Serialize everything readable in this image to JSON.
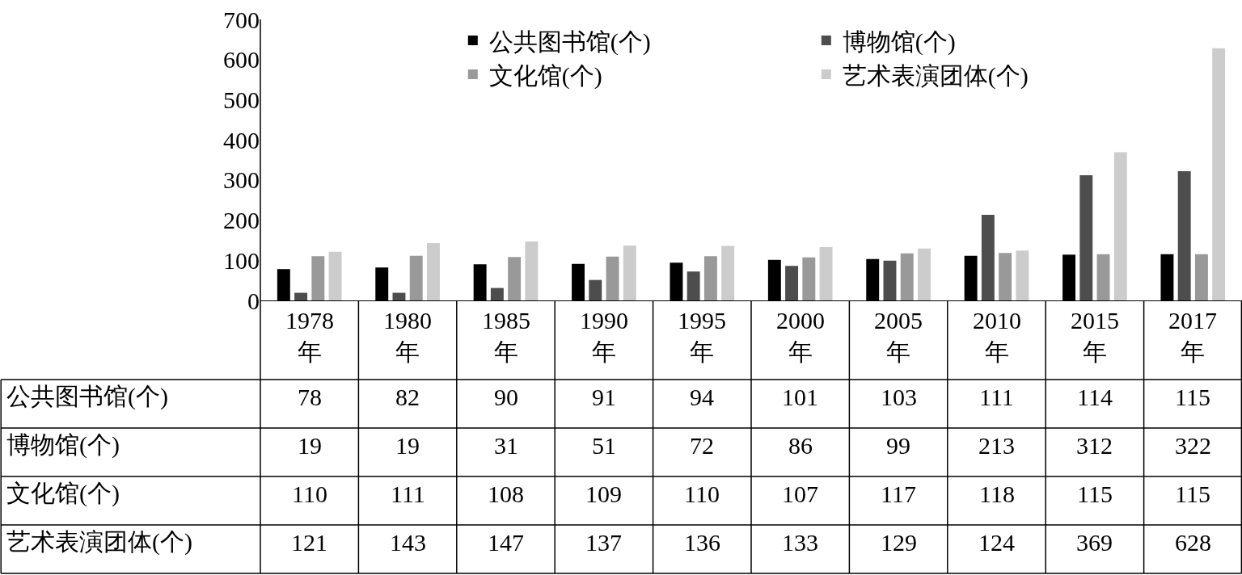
{
  "chart_data": {
    "type": "bar",
    "categories": [
      "1978年",
      "1980年",
      "1985年",
      "1990年",
      "1995年",
      "2000年",
      "2005年",
      "2010年",
      "2015年",
      "2017年"
    ],
    "series": [
      {
        "name": "公共图书馆(个)",
        "color": "#000000",
        "values": [
          78,
          82,
          90,
          91,
          94,
          101,
          103,
          111,
          114,
          115
        ]
      },
      {
        "name": "博物馆(个)",
        "color": "#4d4d4d",
        "values": [
          19,
          19,
          31,
          51,
          72,
          86,
          99,
          213,
          312,
          322
        ]
      },
      {
        "name": "文化馆(个)",
        "color": "#999999",
        "values": [
          110,
          111,
          108,
          109,
          110,
          107,
          117,
          118,
          115,
          115
        ]
      },
      {
        "name": "艺术表演团体(个)",
        "color": "#cccccc",
        "values": [
          121,
          143,
          147,
          137,
          136,
          133,
          129,
          124,
          369,
          628
        ]
      }
    ],
    "ylim": [
      0,
      700
    ],
    "yticks": [
      0,
      100,
      200,
      300,
      400,
      500,
      600,
      700
    ],
    "legend": "top",
    "data_labels": true
  }
}
